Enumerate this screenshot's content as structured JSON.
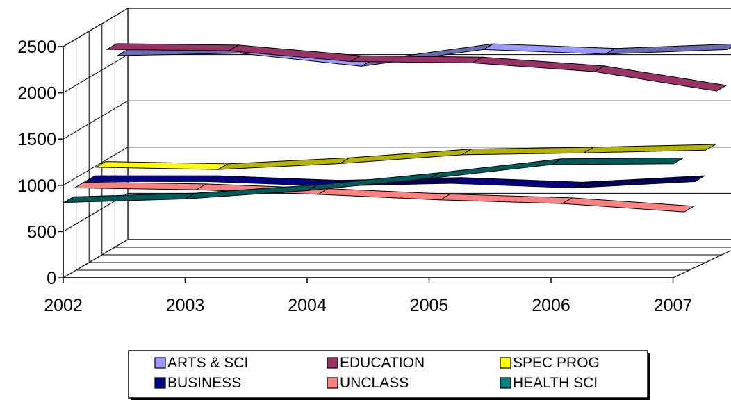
{
  "chart_data": {
    "type": "line",
    "variant": "3d-ribbon",
    "title": "",
    "xlabel": "",
    "ylabel": "",
    "categories": [
      "2002",
      "2003",
      "2004",
      "2005",
      "2006",
      "2007"
    ],
    "ylim": [
      0,
      2500
    ],
    "yticks": [
      "0",
      "500",
      "1000",
      "1500",
      "2000",
      "2500"
    ],
    "grid": true,
    "legend_position": "bottom",
    "series": [
      {
        "name": "ARTS & SCI",
        "color": "#9999FF",
        "values": [
          2055,
          2080,
          1940,
          2120,
          2070,
          2120
        ]
      },
      {
        "name": "EDUCATION",
        "color": "#993366",
        "values": [
          2190,
          2175,
          2060,
          2045,
          1950,
          1740
        ]
      },
      {
        "name": "SPEC PROG",
        "color": "#FFFF00",
        "values": [
          985,
          960,
          1025,
          1120,
          1140,
          1170
        ]
      },
      {
        "name": "BUSINESS",
        "color": "#000080",
        "values": [
          900,
          900,
          850,
          880,
          830,
          900
        ]
      },
      {
        "name": "UNCLASS",
        "color": "#FF8080",
        "values": [
          900,
          880,
          830,
          770,
          730,
          640
        ]
      },
      {
        "name": "HEALTH SCI",
        "color": "#008080",
        "values": [
          810,
          850,
          940,
          1070,
          1220,
          1230
        ]
      }
    ]
  }
}
